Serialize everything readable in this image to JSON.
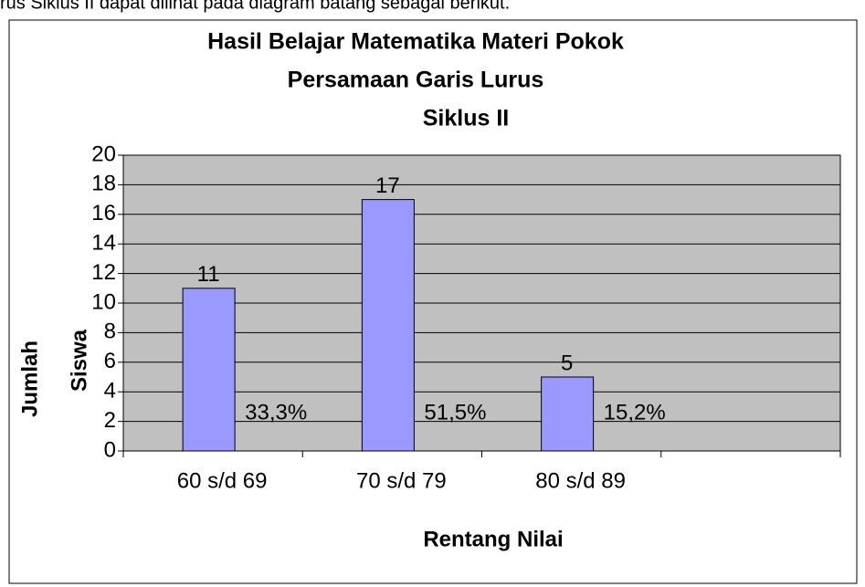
{
  "caption": "rus Siklus II dapat dilihat pada diagram batang sebagai berikut.",
  "chart_data": {
    "type": "bar",
    "title": [
      "Hasil Belajar Matematika Materi Pokok",
      "Persamaan Garis Lurus",
      "Siklus II"
    ],
    "x_label": "Rentang Nilai",
    "y_label": [
      "Jumlah",
      "Siswa"
    ],
    "categories": [
      "60 s/d 69",
      "70 s/d 79",
      "80 s/d 89",
      null
    ],
    "values": [
      11,
      17,
      5,
      null
    ],
    "annotations": [
      "33,3%",
      "51,5%",
      "15,2%"
    ],
    "color": "#9999ff",
    "plot_background": "#c0c0c0",
    "ylim": [
      0,
      20
    ],
    "yticks": [
      0,
      2,
      4,
      6,
      8,
      10,
      12,
      14,
      16,
      18,
      20
    ],
    "grid": true
  }
}
